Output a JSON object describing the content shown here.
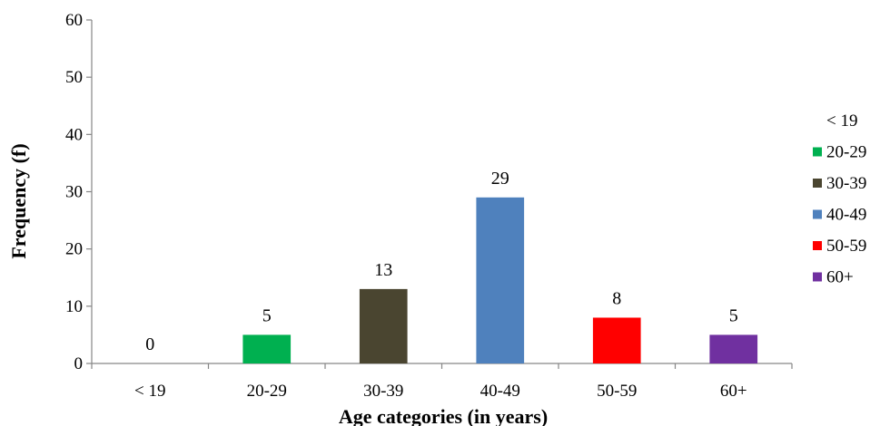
{
  "chart_data": {
    "type": "bar",
    "categories": [
      "< 19",
      "20-29",
      "30-39",
      "40-49",
      "50-59",
      "60+"
    ],
    "values": [
      0,
      5,
      13,
      29,
      8,
      5
    ],
    "colors": [
      "#ffffff",
      "#00b050",
      "#4a4530",
      "#4f81bd",
      "#ff0000",
      "#7030a0"
    ],
    "xlabel": "Age categories (in years)",
    "ylabel": "Frequency (f)",
    "ylim": [
      0,
      60
    ],
    "yticks": [
      0,
      10,
      20,
      30,
      40,
      50,
      60
    ],
    "grid": false,
    "legend": {
      "position": "right",
      "entries": [
        "< 19",
        "20-29",
        "30-39",
        "40-49",
        "50-59",
        "60+"
      ]
    }
  }
}
